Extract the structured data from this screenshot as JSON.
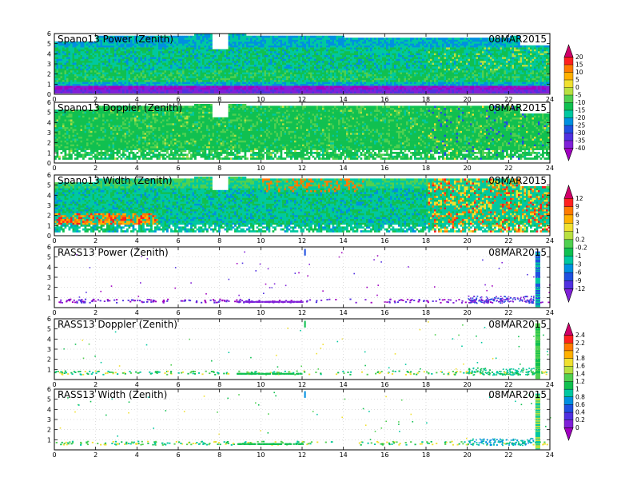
{
  "chart_data": [
    {
      "type": "heatmap",
      "title": "Spano13 Power (Zenith)",
      "date": "08MAR2015",
      "xlim": [
        0,
        24
      ],
      "ylim": [
        0,
        6
      ],
      "x_ticks": [
        "0",
        "2",
        "4",
        "6",
        "8",
        "10",
        "12",
        "14",
        "16",
        "18",
        "20",
        "22",
        "24"
      ],
      "y_ticks": [
        "0",
        "1",
        "2",
        "3",
        "4",
        "5",
        "6"
      ],
      "colorbar": "power"
    },
    {
      "type": "heatmap",
      "title": "Spano13 Doppler (Zenith)",
      "date": "08MAR2015",
      "xlim": [
        0,
        24
      ],
      "ylim": [
        0,
        6
      ],
      "x_ticks": [
        "0",
        "2",
        "4",
        "6",
        "8",
        "10",
        "12",
        "14",
        "16",
        "18",
        "20",
        "22",
        "24"
      ],
      "y_ticks": [
        "0",
        "1",
        "2",
        "3",
        "4",
        "5",
        "6"
      ],
      "colorbar": "none"
    },
    {
      "type": "heatmap",
      "title": "Spano13 Width (Zenith)",
      "date": "08MAR2015",
      "xlim": [
        0,
        24
      ],
      "ylim": [
        0,
        6
      ],
      "x_ticks": [
        "0",
        "2",
        "4",
        "6",
        "8",
        "10",
        "12",
        "14",
        "16",
        "18",
        "20",
        "22",
        "24"
      ],
      "y_ticks": [
        "0",
        "1",
        "2",
        "3",
        "4",
        "5",
        "6"
      ],
      "colorbar": "width"
    },
    {
      "type": "scatter",
      "title": "RASS13 Power (Zenith)",
      "date": "08MAR2015",
      "xlim": [
        0,
        24
      ],
      "ylim": [
        0,
        6
      ],
      "x_ticks": [
        "0",
        "2",
        "4",
        "6",
        "8",
        "10",
        "12",
        "14",
        "16",
        "18",
        "20",
        "22",
        "24"
      ],
      "y_ticks": [
        "1",
        "2",
        "3",
        "4",
        "5",
        "6"
      ],
      "colorbar": "rass_power"
    },
    {
      "type": "scatter",
      "title": "RASS13 Doppler (Zenith)",
      "date": "08MAR2015",
      "xlim": [
        0,
        24
      ],
      "ylim": [
        0,
        6
      ],
      "x_ticks": [
        "0",
        "2",
        "4",
        "6",
        "8",
        "10",
        "12",
        "14",
        "16",
        "18",
        "20",
        "22",
        "24"
      ],
      "y_ticks": [
        "1",
        "2",
        "3",
        "4",
        "5",
        "6"
      ],
      "colorbar": "none"
    },
    {
      "type": "scatter",
      "title": "RASS13 Width (Zenith)",
      "date": "08MAR2015",
      "xlim": [
        0,
        24
      ],
      "ylim": [
        0,
        6
      ],
      "x_ticks": [
        "0",
        "2",
        "4",
        "6",
        "8",
        "10",
        "12",
        "14",
        "16",
        "18",
        "20",
        "22",
        "24"
      ],
      "y_ticks": [
        "1",
        "2",
        "3",
        "4",
        "5",
        "6"
      ],
      "colorbar": "rass_width"
    }
  ],
  "colorbars": {
    "power": {
      "labels": [
        "20",
        "15",
        "10",
        "5",
        "0",
        "-5",
        "-10",
        "-15",
        "-20",
        "-25",
        "-30",
        "-35",
        "-40"
      ],
      "colors": [
        "#d0006a",
        "#ff2020",
        "#ff7a00",
        "#ffb000",
        "#f0e030",
        "#b8e040",
        "#50d050",
        "#10c050",
        "#00c8a0",
        "#0090e0",
        "#2050e0",
        "#5030e0",
        "#8020d8",
        "#a000c0"
      ]
    },
    "width": {
      "labels": [
        "12",
        "9",
        "6",
        "3",
        "1",
        "0.2",
        "-0.2",
        "-1",
        "-3",
        "-6",
        "-9",
        "-12"
      ],
      "colors": [
        "#d0006a",
        "#ff2020",
        "#ff7a00",
        "#ffb000",
        "#f0e030",
        "#b8e040",
        "#50d050",
        "#10c050",
        "#00c8a0",
        "#0090e0",
        "#2050e0",
        "#5030e0",
        "#8020d8"
      ]
    },
    "rass": {
      "labels": [
        "2.4",
        "2.2",
        "2",
        "1.8",
        "1.6",
        "1.4",
        "1.2",
        "1",
        "0.8",
        "0.6",
        "0.4",
        "0.2",
        "0"
      ],
      "colors": [
        "#d0006a",
        "#ff2020",
        "#ff7a00",
        "#ffb000",
        "#f0e030",
        "#b8e040",
        "#50d050",
        "#10c050",
        "#00c8a0",
        "#0090e0",
        "#2050e0",
        "#5030e0",
        "#8020d8",
        "#a000c0"
      ]
    }
  }
}
